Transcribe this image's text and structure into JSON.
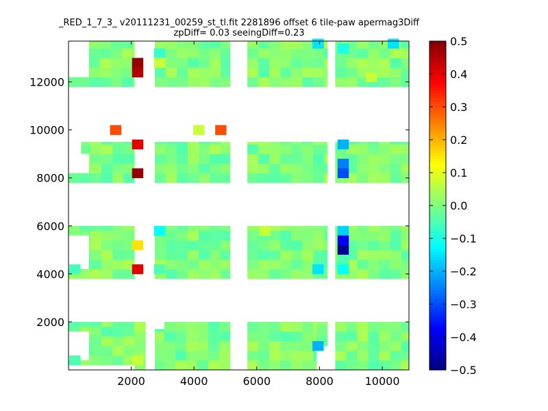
{
  "chart_data": {
    "type": "heatmap",
    "title": "_RED_1_7_3_ v20111231_00259_st_tl.fit 2281896 offset 6 tile-paw apermag3Diff",
    "subtitle": "zpDiff= 0.03 seeingDiff=0.23",
    "xlim": [
      0,
      10850
    ],
    "ylim": [
      0,
      13700
    ],
    "xticks": [
      2000,
      4000,
      6000,
      8000,
      10000
    ],
    "yticks": [
      2000,
      4000,
      6000,
      8000,
      10000,
      12000
    ],
    "xtick_labels": [
      "2000",
      "4000",
      "6000",
      "8000",
      "10000"
    ],
    "ytick_labels": [
      "2000",
      "4000",
      "6000",
      "8000",
      "10000",
      "12000"
    ],
    "colorbar": {
      "colormap": "jet",
      "vmin": -0.5,
      "vmax": 0.5,
      "ticks": [
        "0.5",
        "0.4",
        "0.3",
        "0.2",
        "0.1",
        "0.0",
        "−0.1",
        "−0.2",
        "−0.3",
        "−0.4",
        "−0.5"
      ],
      "tick_values": [
        0.5,
        0.4,
        0.3,
        0.2,
        0.1,
        0.0,
        -0.1,
        -0.2,
        -0.3,
        -0.4,
        -0.5
      ]
    },
    "cell_size": [
      350,
      400
    ],
    "background_value": 0.0,
    "blocks": [
      {
        "x": [
          0,
          2100
        ],
        "y": [
          200,
          2000
        ]
      },
      {
        "x": [
          2100,
          2450
        ],
        "y": [
          0,
          2000
        ]
      },
      {
        "x": [
          2750,
          3050
        ],
        "y": [
          0,
          1700
        ]
      },
      {
        "x": [
          3050,
          5150
        ],
        "y": [
          0,
          2000
        ]
      },
      {
        "x": [
          5700,
          7900
        ],
        "y": [
          0,
          2000
        ]
      },
      {
        "x": [
          7900,
          8250
        ],
        "y": [
          1000,
          2000
        ]
      },
      {
        "x": [
          8500,
          10850
        ],
        "y": [
          0,
          2000
        ]
      },
      {
        "x": [
          0,
          2100
        ],
        "y": [
          3800,
          6000
        ]
      },
      {
        "x": [
          2750,
          5150
        ],
        "y": [
          3800,
          6000
        ]
      },
      {
        "x": [
          5700,
          8250
        ],
        "y": [
          3800,
          6000
        ]
      },
      {
        "x": [
          8500,
          10850
        ],
        "y": [
          3800,
          6000
        ]
      },
      {
        "x": [
          0,
          2100
        ],
        "y": [
          7800,
          9500
        ]
      },
      {
        "x": [
          2750,
          5150
        ],
        "y": [
          7800,
          9500
        ]
      },
      {
        "x": [
          5700,
          8250
        ],
        "y": [
          7800,
          9500
        ]
      },
      {
        "x": [
          8500,
          10850
        ],
        "y": [
          7800,
          9500
        ]
      },
      {
        "x": [
          0,
          650
        ],
        "y": [
          11800,
          12200
        ]
      },
      {
        "x": [
          650,
          2100
        ],
        "y": [
          11800,
          13700
        ]
      },
      {
        "x": [
          2750,
          5150
        ],
        "y": [
          11800,
          13700
        ]
      },
      {
        "x": [
          5700,
          8250
        ],
        "y": [
          11800,
          13700
        ]
      },
      {
        "x": [
          8500,
          10850
        ],
        "y": [
          11800,
          13700
        ]
      }
    ],
    "blank_cells": [
      {
        "x": [
          0,
          650
        ],
        "y": [
          400,
          1600
        ]
      },
      {
        "x": [
          0,
          650
        ],
        "y": [
          4200,
          5600
        ]
      },
      {
        "x": [
          0,
          650
        ],
        "y": [
          8200,
          9000
        ]
      },
      {
        "x": [
          0,
          400
        ],
        "y": [
          9000,
          9500
        ]
      }
    ],
    "cells": [
      {
        "x": 2200,
        "y": 12800,
        "v": 0.48
      },
      {
        "x": 2200,
        "y": 12400,
        "v": 0.45
      },
      {
        "x": 1500,
        "y": 10000,
        "v": 0.3
      },
      {
        "x": 4150,
        "y": 10000,
        "v": 0.07
      },
      {
        "x": 4850,
        "y": 10000,
        "v": 0.3
      },
      {
        "x": 2200,
        "y": 9400,
        "v": 0.4
      },
      {
        "x": 2200,
        "y": 8200,
        "v": 0.48
      },
      {
        "x": 2200,
        "y": 5200,
        "v": 0.15
      },
      {
        "x": 2200,
        "y": 4200,
        "v": 0.4
      },
      {
        "x": 2200,
        "y": 400,
        "v": 0.07
      },
      {
        "x": 2900,
        "y": 13200,
        "v": -0.07
      },
      {
        "x": 2900,
        "y": 12800,
        "v": 0.07
      },
      {
        "x": 2900,
        "y": 5800,
        "v": -0.12
      },
      {
        "x": 2900,
        "y": 4200,
        "v": -0.05
      },
      {
        "x": 6250,
        "y": 5800,
        "v": 0.07
      },
      {
        "x": 7950,
        "y": 4200,
        "v": -0.15
      },
      {
        "x": 7950,
        "y": 13600,
        "v": -0.15
      },
      {
        "x": 7950,
        "y": 1000,
        "v": -0.2
      },
      {
        "x": 8750,
        "y": 13400,
        "v": -0.1
      },
      {
        "x": 10350,
        "y": 13600,
        "v": -0.15
      },
      {
        "x": 9650,
        "y": 12200,
        "v": 0.07
      },
      {
        "x": 8750,
        "y": 9400,
        "v": -0.2
      },
      {
        "x": 8750,
        "y": 8600,
        "v": -0.25
      },
      {
        "x": 8750,
        "y": 8200,
        "v": -0.3
      },
      {
        "x": 8750,
        "y": 5800,
        "v": -0.17
      },
      {
        "x": 8750,
        "y": 5400,
        "v": -0.38
      },
      {
        "x": 8750,
        "y": 5000,
        "v": -0.48
      },
      {
        "x": 8750,
        "y": 4600,
        "v": -0.05
      },
      {
        "x": 8750,
        "y": 4200,
        "v": -0.12
      },
      {
        "x": 200,
        "y": 4200,
        "v": -0.06
      },
      {
        "x": 200,
        "y": 400,
        "v": -0.05
      }
    ]
  }
}
